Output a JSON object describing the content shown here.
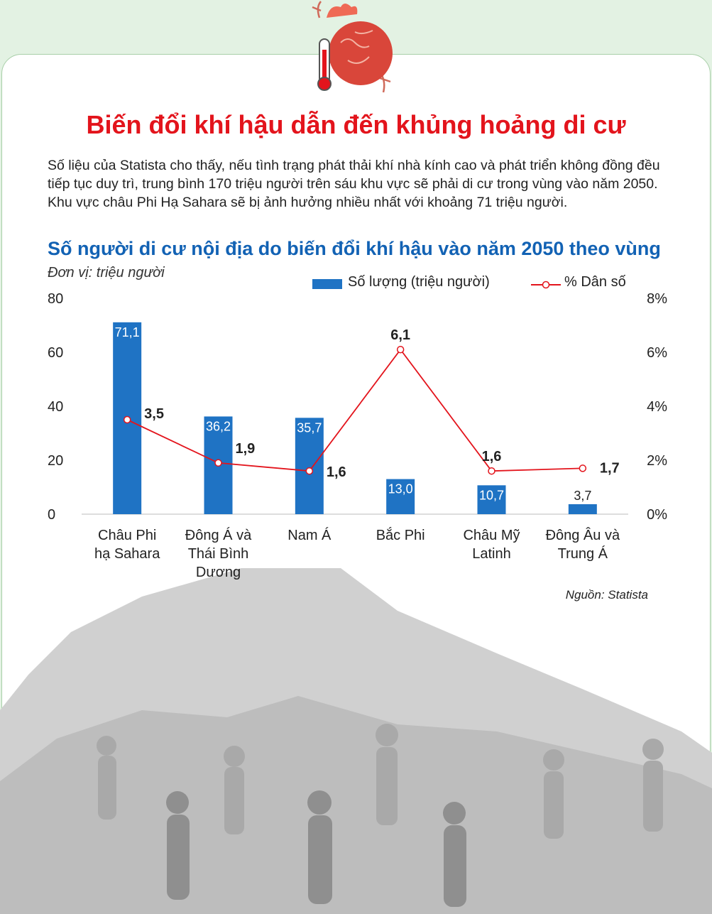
{
  "header": {
    "title": "Biến đổi khí hậu dẫn đến khủng hoảng di cư",
    "intro": "Số liệu của Statista cho thấy, nếu tình trạng phát thải khí nhà kính cao và phát triển không đồng đều tiếp tục duy trì, trung bình 170 triệu người trên sáu khu vực sẽ phải di cư trong vùng vào năm 2050. Khu vực châu Phi Hạ Sahara sẽ bị ảnh hưởng nhiều nhất với khoảng 71 triệu người."
  },
  "chart_data": {
    "type": "bar",
    "title": "Số người di cư nội địa do biến đổi khí hậu vào năm 2050 theo vùng",
    "unit_note": "Đơn vị: triệu người",
    "categories": [
      [
        "Châu Phi",
        "hạ Sahara"
      ],
      [
        "Đông Á và",
        "Thái Bình",
        "Dương"
      ],
      [
        "Nam Á"
      ],
      [
        "Bắc Phi"
      ],
      [
        "Châu Mỹ",
        "Latinh"
      ],
      [
        "Đông Âu và",
        "Trung Á"
      ]
    ],
    "series": [
      {
        "name": "Số lượng (triệu người)",
        "type": "bar",
        "axis": "left",
        "color": "#1f73c4",
        "values": [
          71.1,
          36.2,
          35.7,
          13.0,
          10.7,
          3.7
        ],
        "labels": [
          "71,1",
          "36,2",
          "35,7",
          "13,0",
          "10,7",
          "3,7"
        ]
      },
      {
        "name": "% Dân số",
        "type": "line",
        "axis": "right",
        "color": "#e3141c",
        "values": [
          3.5,
          1.9,
          1.6,
          6.1,
          1.6,
          1.7
        ],
        "labels": [
          "3,5",
          "1,9",
          "1,6",
          "6,1",
          "1,6",
          "1,7"
        ]
      }
    ],
    "y_left": {
      "ticks": [
        "0",
        "20",
        "40",
        "60",
        "80"
      ],
      "lim": [
        0,
        80
      ]
    },
    "y_right": {
      "ticks": [
        "0%",
        "2%",
        "4%",
        "6%",
        "8%"
      ],
      "lim": [
        0,
        8
      ]
    },
    "legend_position": "top-right",
    "grid": false
  },
  "footer": {
    "source_label": "Nguồn",
    "source": "Statista"
  },
  "colors": {
    "title": "#e3141c",
    "chart_title": "#1262b4",
    "bar": "#1f73c4",
    "line": "#e3141c",
    "background": "#e3f2e3"
  }
}
